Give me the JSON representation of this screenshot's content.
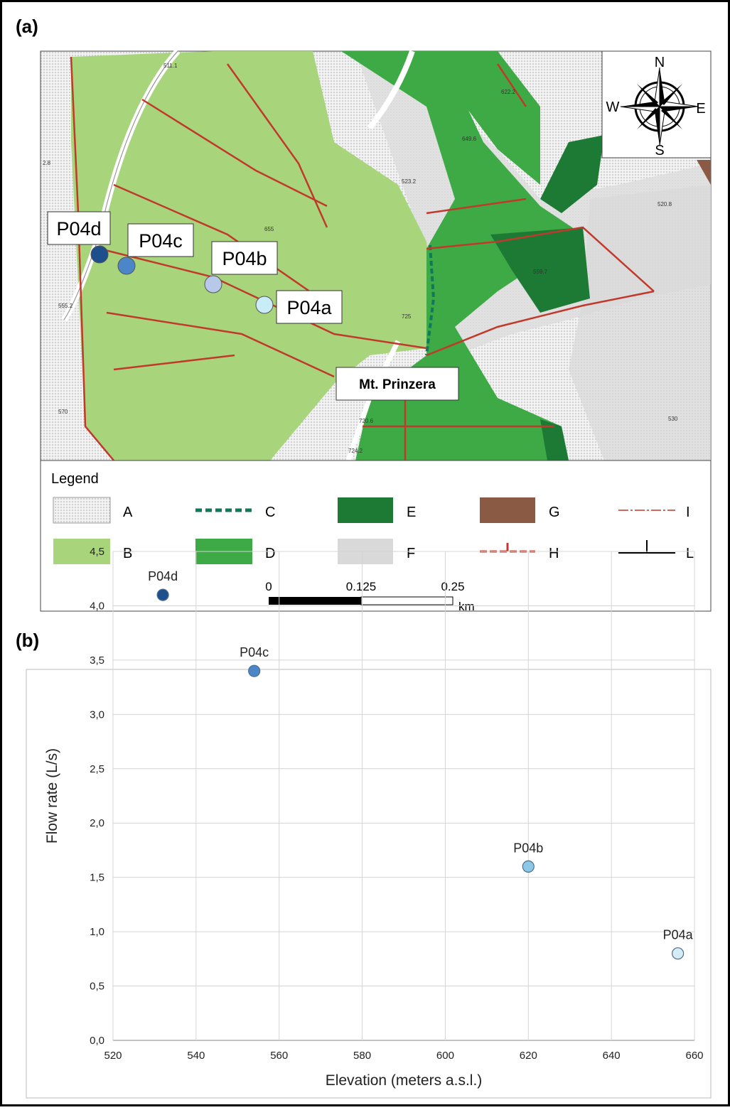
{
  "map": {
    "panel_label": "(a)",
    "points": [
      "P04d",
      "P04c",
      "P04b",
      "P04a"
    ],
    "place_label": "Mt. Prinzera",
    "compass": {
      "N": "N",
      "S": "S",
      "W": "W",
      "E": "E"
    },
    "spot_heights": [
      "511.1",
      "622.2",
      "649.6",
      "523.2",
      "520.8",
      "655",
      "725",
      "559.7",
      "555.2",
      "570",
      "720.6",
      "724.2",
      "530",
      "2.8"
    ],
    "legend": {
      "title": "Legend",
      "items": [
        "A",
        "B",
        "C",
        "D",
        "E",
        "F",
        "G",
        "H",
        "I",
        "L"
      ]
    },
    "scale": {
      "ticks": [
        0,
        0.125,
        0.25
      ],
      "unit": "km"
    }
  },
  "chart_data": {
    "type": "scatter",
    "panel_label": "(b)",
    "x_label": "Elevation (meters a.s.l.)",
    "y_label": "Flow rate (L/s)",
    "point_labels": [
      "P04d",
      "P04c",
      "P04b",
      "P04a"
    ],
    "colors": [
      "#1f4e8c",
      "#4a86c8",
      "#8cc8e6",
      "#d4ecf6"
    ],
    "x": [
      532,
      554,
      620,
      656
    ],
    "values": [
      4.1,
      3.4,
      1.6,
      0.8
    ],
    "xlim": [
      520,
      660
    ],
    "xticks": [
      520,
      540,
      560,
      580,
      600,
      620,
      640,
      660
    ],
    "ylim": [
      0,
      4.5
    ],
    "yticks": [
      {
        "value": 0,
        "label": "0,0"
      },
      {
        "value": 0.5,
        "label": "0,5"
      },
      {
        "value": 1,
        "label": "1,0"
      },
      {
        "value": 1.5,
        "label": "1,5"
      },
      {
        "value": 2,
        "label": "2,0"
      },
      {
        "value": 2.5,
        "label": "2,5"
      },
      {
        "value": 3,
        "label": "3,0"
      },
      {
        "value": 3.5,
        "label": "3,5"
      },
      {
        "value": 4,
        "label": "4,0"
      },
      {
        "value": 4.5,
        "label": "4,5"
      }
    ],
    "grid": true
  }
}
